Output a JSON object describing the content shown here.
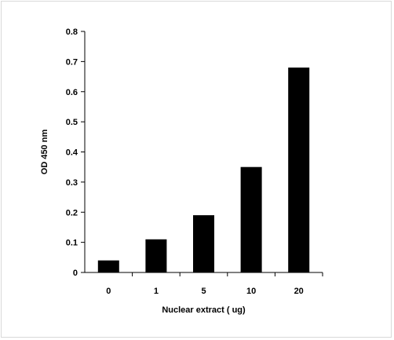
{
  "chart_data": {
    "type": "bar",
    "categories": [
      "0",
      "1",
      "5",
      "10",
      "20"
    ],
    "values": [
      0.04,
      0.11,
      0.19,
      0.35,
      0.68
    ],
    "title": "",
    "xlabel": "Nuclear extract ( ug)",
    "ylabel": "OD 450 nm",
    "ylim": [
      0,
      0.8
    ],
    "yticks": [
      "0",
      "0.1",
      "0.2",
      "0.3",
      "0.4",
      "0.5",
      "0.6",
      "0.7",
      "0.8"
    ],
    "grid": false,
    "legend": "none",
    "colors": {
      "bar": "#000000",
      "axis": "#000000",
      "background": "#ffffff",
      "border": "#d9d9d9"
    }
  }
}
